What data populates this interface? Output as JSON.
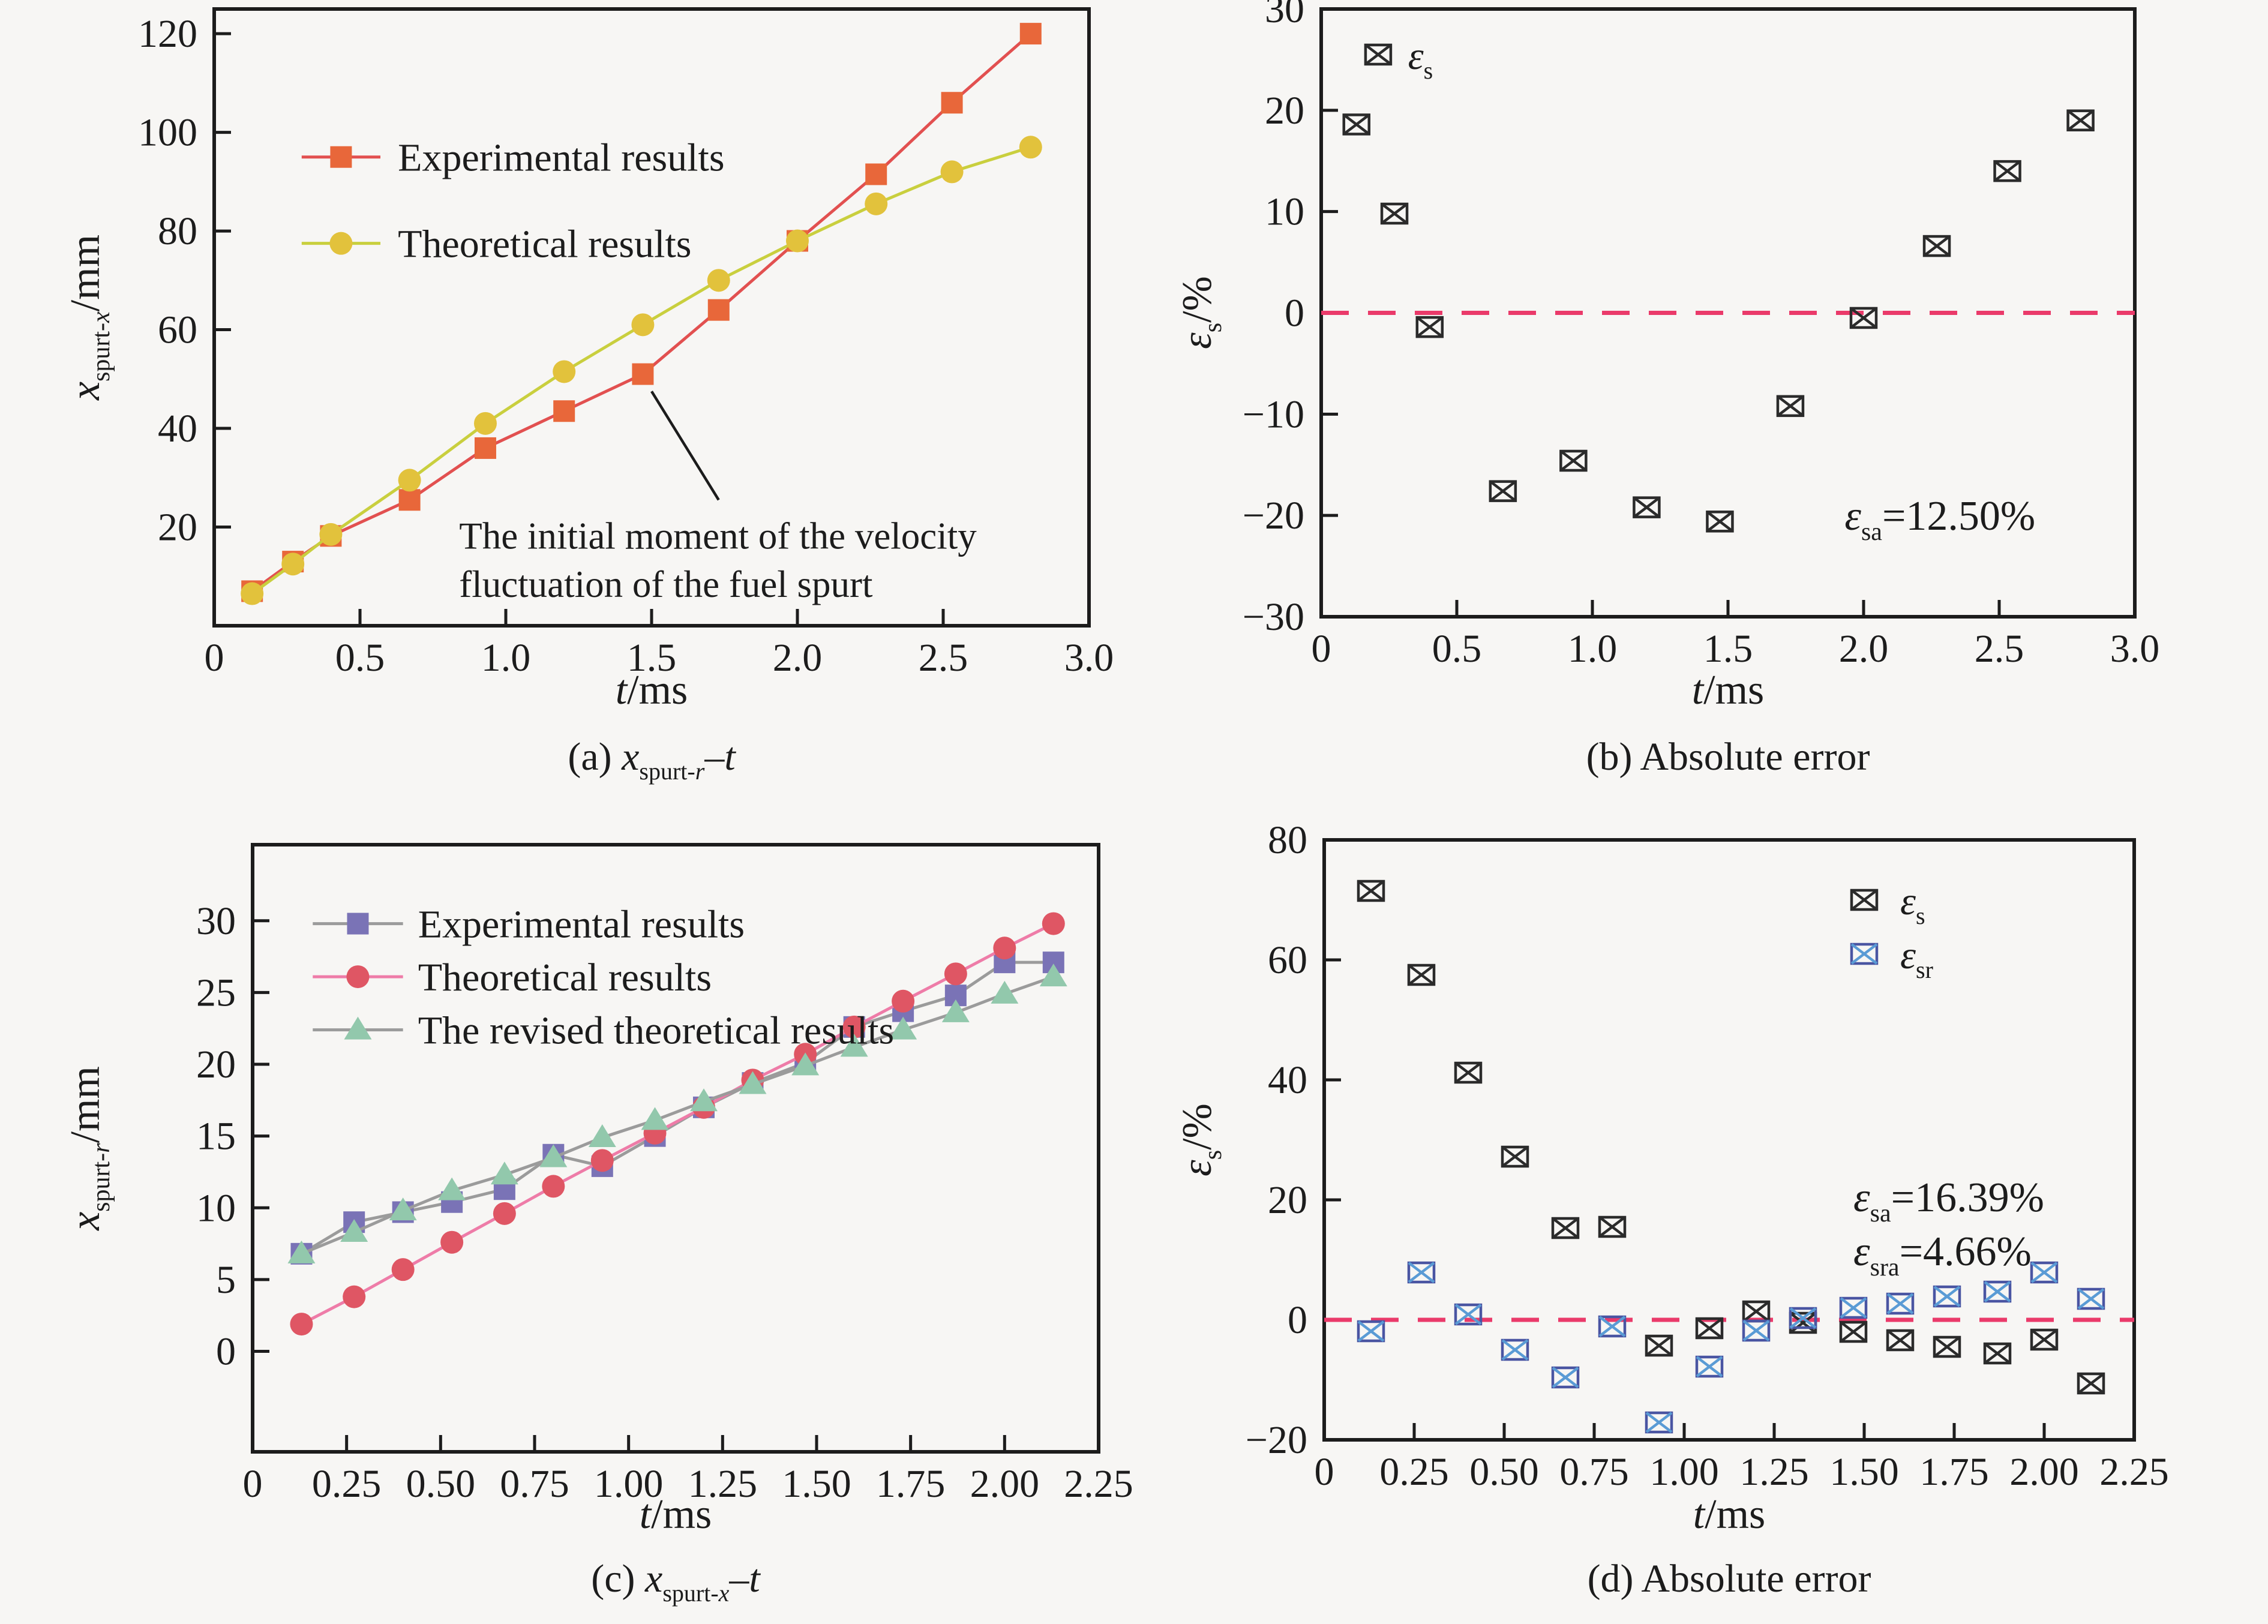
{
  "page": {
    "background": "#f7f6f4",
    "axis_color": "#1c1c1c",
    "zero_line_color": "#ea3a6a"
  },
  "chart_data": [
    {
      "id": "a",
      "type": "line",
      "title": "",
      "xlabel": "*t*/ms",
      "ylabel": "*x*_{spurt-}~{x}/mm",
      "caption": "(a) *x*_{spurt-}~{r}–*t*",
      "xlim": [
        0,
        3.0
      ],
      "ylim": [
        0,
        125
      ],
      "xticks": [
        0.5,
        1.0,
        1.5,
        2.0,
        2.5
      ],
      "xtick_labels_all": [
        "0",
        "0.5",
        "1.0",
        "1.5",
        "2.0",
        "2.5",
        "3.0"
      ],
      "xtick_values_all": [
        0,
        0.5,
        1.0,
        1.5,
        2.0,
        2.5,
        3.0
      ],
      "ytick_values_all": [
        20,
        40,
        60,
        80,
        100,
        120
      ],
      "ytick_labels_all": [
        "20",
        "40",
        "60",
        "80",
        "100",
        "120"
      ],
      "grid": false,
      "x": [
        0.13,
        0.27,
        0.4,
        0.67,
        0.93,
        1.2,
        1.47,
        1.73,
        2.0,
        2.27,
        2.53,
        2.8
      ],
      "series": [
        {
          "name": "Experimental results",
          "marker": "square",
          "marker_color": "#e8673a",
          "line_color": "#e25050",
          "values": [
            7,
            13,
            18.2,
            25.5,
            36,
            43.5,
            51,
            64,
            78,
            91.5,
            106,
            120
          ]
        },
        {
          "name": "Theoretical results",
          "marker": "circle",
          "marker_color": "#e2c23c",
          "line_color": "#c9cf3e",
          "values": [
            6.5,
            12.5,
            18.5,
            29.5,
            41,
            51.5,
            61,
            70,
            78,
            85.5,
            92,
            97
          ]
        }
      ],
      "legend": {
        "rows_y": [
          95,
          77.5
        ],
        "line_x": [
          0.3,
          0.57
        ],
        "text_x": 0.63,
        "position": "top-left-inside"
      },
      "annotation": {
        "lines": [
          "The initial moment of the velocity",
          "fluctuation of the fuel spurt"
        ],
        "x": 0.84,
        "line_y": [
          18.2,
          8.4
        ],
        "leader": {
          "x1": 1.5,
          "y1": 47.5,
          "x2": 1.73,
          "y2": 25.5
        }
      }
    },
    {
      "id": "b",
      "type": "scatter",
      "xlabel": "*t*/ms",
      "ylabel": "*ε*_{s}/%",
      "caption": "(b) Absolute error",
      "xlim": [
        0,
        3.0
      ],
      "ylim": [
        -30,
        30
      ],
      "xtick_values_all": [
        0,
        0.5,
        1.0,
        1.5,
        2.0,
        2.5,
        3.0
      ],
      "xtick_labels_all": [
        "0",
        "0.5",
        "1.0",
        "1.5",
        "2.0",
        "2.5",
        "3.0"
      ],
      "ytick_values_all": [
        -30,
        -20,
        -10,
        0,
        10,
        20,
        30
      ],
      "ytick_labels_all": [
        "−30",
        "−20",
        "−10",
        "0",
        "10",
        "20",
        "30"
      ],
      "grid": false,
      "zero_line": true,
      "x": [
        0.13,
        0.27,
        0.4,
        0.67,
        0.93,
        1.2,
        1.47,
        1.73,
        2.0,
        2.27,
        2.53,
        2.8
      ],
      "series": [
        {
          "name": "epsilon-s",
          "label": "*ε*_{s}",
          "marker": "boxx",
          "box_color": "#2b2b2b",
          "x_color": "#2b2b2b",
          "values": [
            18.6,
            9.8,
            -1.4,
            -17.6,
            -14.6,
            -19.2,
            -20.6,
            -9.2,
            -0.5,
            6.6,
            14.0,
            19.0
          ]
        }
      ],
      "legend": {
        "items": [
          {
            "series": 0,
            "mx": 0.21,
            "tx": 0.32,
            "y": 25.5
          }
        ]
      },
      "notes": [
        {
          "text": "*ε*_{sa}=12.50%",
          "x": 1.93,
          "y": -20
        }
      ]
    },
    {
      "id": "c",
      "type": "line",
      "xlabel": "*t*/ms",
      "ylabel": "*x*_{spurt-}~{r}/mm",
      "caption": "(c) *x*_{spurt-}~{x}–*t*",
      "xlim": [
        0,
        2.25
      ],
      "ylim": [
        -7,
        35.3
      ],
      "xtick_values_all": [
        0,
        0.25,
        0.5,
        0.75,
        1.0,
        1.25,
        1.5,
        1.75,
        2.0,
        2.25
      ],
      "xtick_labels_all": [
        "0",
        "0.25",
        "0.50",
        "0.75",
        "1.00",
        "1.25",
        "1.50",
        "1.75",
        "2.00",
        "2.25"
      ],
      "ytick_values_all": [
        0,
        5,
        10,
        15,
        20,
        25,
        30
      ],
      "ytick_labels_all": [
        "0",
        "5",
        "10",
        "15",
        "20",
        "25",
        "30"
      ],
      "grid": false,
      "x": [
        0.13,
        0.27,
        0.4,
        0.53,
        0.67,
        0.8,
        0.93,
        1.07,
        1.2,
        1.33,
        1.47,
        1.6,
        1.73,
        1.87,
        2.0,
        2.13
      ],
      "series": [
        {
          "name": "Experimental results",
          "marker": "square",
          "marker_color": "#7a73b6",
          "line_color": "#9b9b9b",
          "values": [
            6.8,
            9.0,
            9.7,
            10.4,
            11.3,
            13.7,
            12.9,
            15.0,
            17.0,
            18.7,
            20.1,
            22.6,
            23.7,
            24.8,
            27.1,
            27.1
          ]
        },
        {
          "name": "Theoretical results",
          "marker": "circle",
          "marker_color": "#df5664",
          "line_color": "#ee7ca8",
          "values": [
            1.9,
            3.8,
            5.7,
            7.6,
            9.6,
            11.5,
            13.3,
            15.2,
            17.0,
            18.9,
            20.7,
            22.6,
            24.4,
            26.3,
            28.1,
            29.8
          ]
        },
        {
          "name": "The revised theoretical results",
          "marker": "triangle",
          "marker_color": "#92c8ac",
          "line_color": "#9b9b9b",
          "values": [
            6.8,
            8.3,
            9.8,
            11.2,
            12.3,
            13.5,
            14.9,
            16.1,
            17.4,
            18.6,
            19.9,
            21.2,
            22.4,
            23.6,
            24.9,
            26.1
          ]
        }
      ],
      "legend": {
        "rows_y": [
          29.8,
          26.1,
          22.4
        ],
        "line_x": [
          0.16,
          0.4
        ],
        "text_x": 0.44,
        "position": "top-left-inside"
      }
    },
    {
      "id": "d",
      "type": "scatter",
      "xlabel": "*t*/ms",
      "ylabel": "*ε*_{s}/%",
      "caption": "(d) Absolute error",
      "xlim": [
        0,
        2.25
      ],
      "ylim": [
        -20,
        80
      ],
      "xtick_values_all": [
        0,
        0.25,
        0.5,
        0.75,
        1.0,
        1.25,
        1.5,
        1.75,
        2.0,
        2.25
      ],
      "xtick_labels_all": [
        "0",
        "0.25",
        "0.50",
        "0.75",
        "1.00",
        "1.25",
        "1.50",
        "1.75",
        "2.00",
        "2.25"
      ],
      "ytick_values_all": [
        -20,
        0,
        20,
        40,
        60,
        80
      ],
      "ytick_labels_all": [
        "−20",
        "0",
        "20",
        "40",
        "60",
        "80"
      ],
      "grid": false,
      "zero_line": true,
      "x": [
        0.13,
        0.27,
        0.4,
        0.53,
        0.67,
        0.8,
        0.93,
        1.07,
        1.2,
        1.33,
        1.47,
        1.6,
        1.73,
        1.87,
        2.0,
        2.13
      ],
      "series": [
        {
          "name": "epsilon-s",
          "label": "*ε*_{s}",
          "marker": "boxx",
          "box_color": "#2b2b2b",
          "x_color": "#2b2b2b",
          "values": [
            71.5,
            57.5,
            41.2,
            27.2,
            15.3,
            15.5,
            -4.3,
            -1.4,
            1.4,
            -0.5,
            -2.0,
            -3.4,
            -4.5,
            -5.6,
            -3.3,
            -10.6
          ]
        },
        {
          "name": "epsilon-sr",
          "label": "*ε*_{sr}",
          "marker": "boxx",
          "box_color": "#4a55a2",
          "x_color": "#5a9bd5",
          "values": [
            -1.9,
            7.9,
            0.9,
            -5.0,
            -9.6,
            -1.1,
            -17.1,
            -7.8,
            -1.8,
            0.3,
            2.0,
            2.7,
            3.9,
            4.7,
            7.9,
            3.5
          ]
        }
      ],
      "legend": {
        "items": [
          {
            "series": 0,
            "mx": 1.5,
            "tx": 1.6,
            "y": 70
          },
          {
            "series": 1,
            "mx": 1.5,
            "tx": 1.6,
            "y": 61
          }
        ]
      },
      "notes": [
        {
          "text": "*ε*_{sa}=16.39%",
          "x": 1.47,
          "y": 20.5
        },
        {
          "text": "*ε*_{sra}=4.66%",
          "x": 1.47,
          "y": 11.5
        }
      ]
    }
  ]
}
